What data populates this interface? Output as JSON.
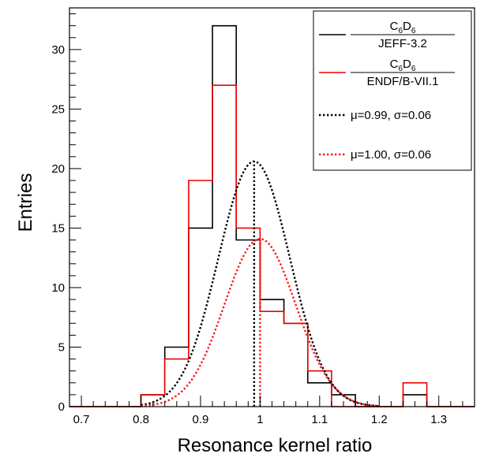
{
  "chart_data": {
    "type": "histogram",
    "xlabel": "Resonance kernel ratio",
    "ylabel": "Entries",
    "xlim": [
      0.68,
      1.36
    ],
    "ylim": [
      0,
      33.5
    ],
    "x_ticks": [
      "0.7",
      "0.8",
      "0.9",
      "1",
      "1.1",
      "1.2",
      "1.3"
    ],
    "y_ticks": [
      "0",
      "5",
      "10",
      "15",
      "20",
      "25",
      "30"
    ],
    "bin_edges": [
      0.68,
      0.72,
      0.76,
      0.8,
      0.84,
      0.88,
      0.92,
      0.96,
      1.0,
      1.04,
      1.08,
      1.12,
      1.16,
      1.2,
      1.24,
      1.28,
      1.32,
      1.36
    ],
    "series": [
      {
        "id": "jeff",
        "color": "#000000",
        "values": [
          0,
          0,
          0,
          1,
          5,
          15,
          32,
          14,
          9,
          7,
          2,
          1,
          0,
          0,
          1,
          0,
          0
        ]
      },
      {
        "id": "endf",
        "color": "#ee0000",
        "values": [
          0,
          0,
          0,
          1,
          4,
          19,
          27,
          15,
          8,
          7,
          3,
          0,
          0,
          0,
          2,
          0,
          0
        ]
      }
    ],
    "fits": [
      {
        "id": "jeff-fit",
        "color": "#000000",
        "mu": 0.99,
        "sigma": 0.06,
        "amplitude": 20.6,
        "range": [
          0.8,
          1.2
        ]
      },
      {
        "id": "endf-fit",
        "color": "#ff1a1a",
        "mu": 1.0,
        "sigma": 0.06,
        "amplitude": 14.1,
        "range": [
          0.8,
          1.2
        ]
      }
    ],
    "legend": {
      "placement": "top-right",
      "entries": [
        {
          "kind": "line",
          "color": "#000000",
          "num_base": "C",
          "num_sub1": "6",
          "num_mid": "D",
          "num_sub2": "6",
          "den": "JEFF-3.2"
        },
        {
          "kind": "line",
          "color": "#ee0000",
          "num_base": "C",
          "num_sub1": "6",
          "num_mid": "D",
          "num_sub2": "6",
          "den": "ENDF/B-VII.1"
        },
        {
          "kind": "dotted",
          "color": "#000000",
          "label": "μ=0.99, σ=0.06"
        },
        {
          "kind": "dotted",
          "color": "#ff1a1a",
          "label": "μ=1.00, σ=0.06"
        }
      ]
    }
  }
}
